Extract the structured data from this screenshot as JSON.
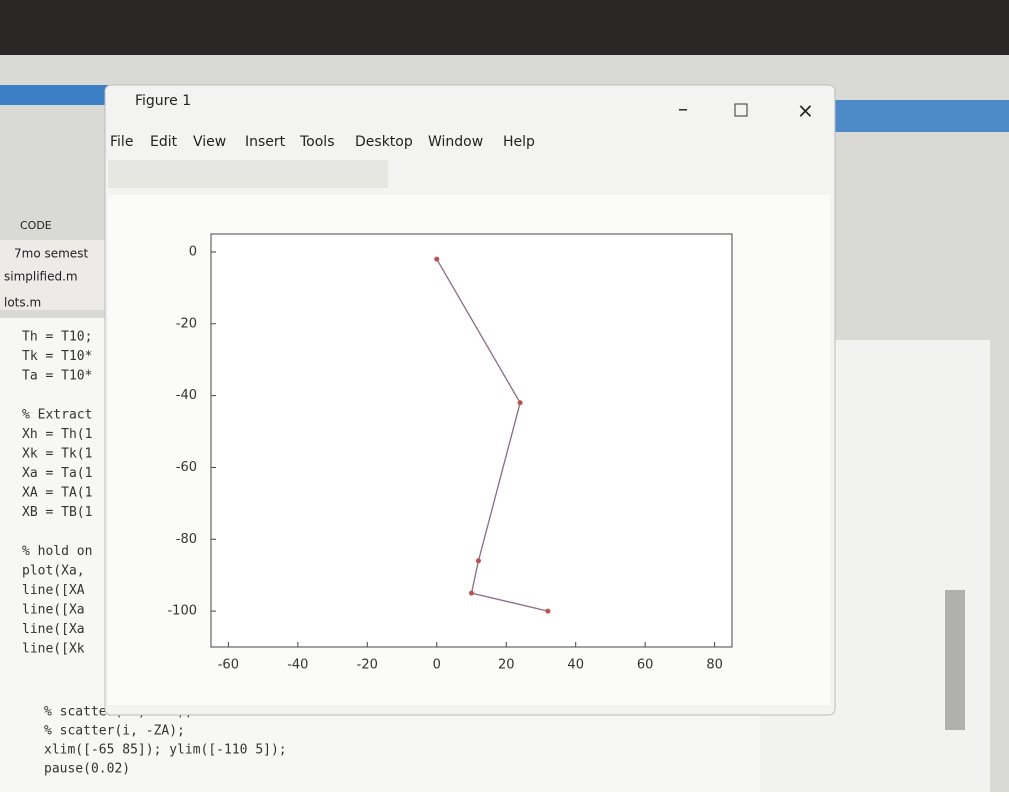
{
  "window": {
    "title": "Figure 1",
    "menu": [
      "File",
      "Edit",
      "View",
      "Insert",
      "Tools",
      "Desktop",
      "Window",
      "Help"
    ]
  },
  "sidebar": {
    "section": "CODE",
    "folder": "7mo semest",
    "file": "simplified.m",
    "tab": "lots.m"
  },
  "editor": {
    "lines": [
      "Th = T10;",
      "Tk = T10*",
      "Ta = T10*",
      "",
      "% Extract",
      "Xh = Th(1",
      "Xk = Tk(1",
      "Xa = Ta(1",
      "XA = TA(1",
      "XB = TB(1",
      "",
      "% hold on",
      "plot(Xa,",
      "line([XA",
      "line([Xa",
      "line([Xa",
      "line([Xk",
      "% scatter(XA, -ZA);",
      "% scatter(i, -ZA);",
      "xlim([-65 85]); ylim([-110 5]);",
      "pause(0.02)"
    ]
  },
  "chart_data": {
    "type": "line",
    "x": [
      0,
      24,
      12,
      10,
      32
    ],
    "series": [
      {
        "color": "#8c6b86",
        "marker_color": "#c0504d",
        "values": [
          -2,
          -42,
          -86,
          -95,
          -100
        ]
      }
    ],
    "xlim": [
      -65,
      85
    ],
    "ylim": [
      -110,
      5
    ],
    "xticks": [
      -60,
      -40,
      -20,
      0,
      20,
      40,
      60,
      80
    ],
    "yticks": [
      0,
      -20,
      -40,
      -60,
      -80,
      -100
    ]
  }
}
